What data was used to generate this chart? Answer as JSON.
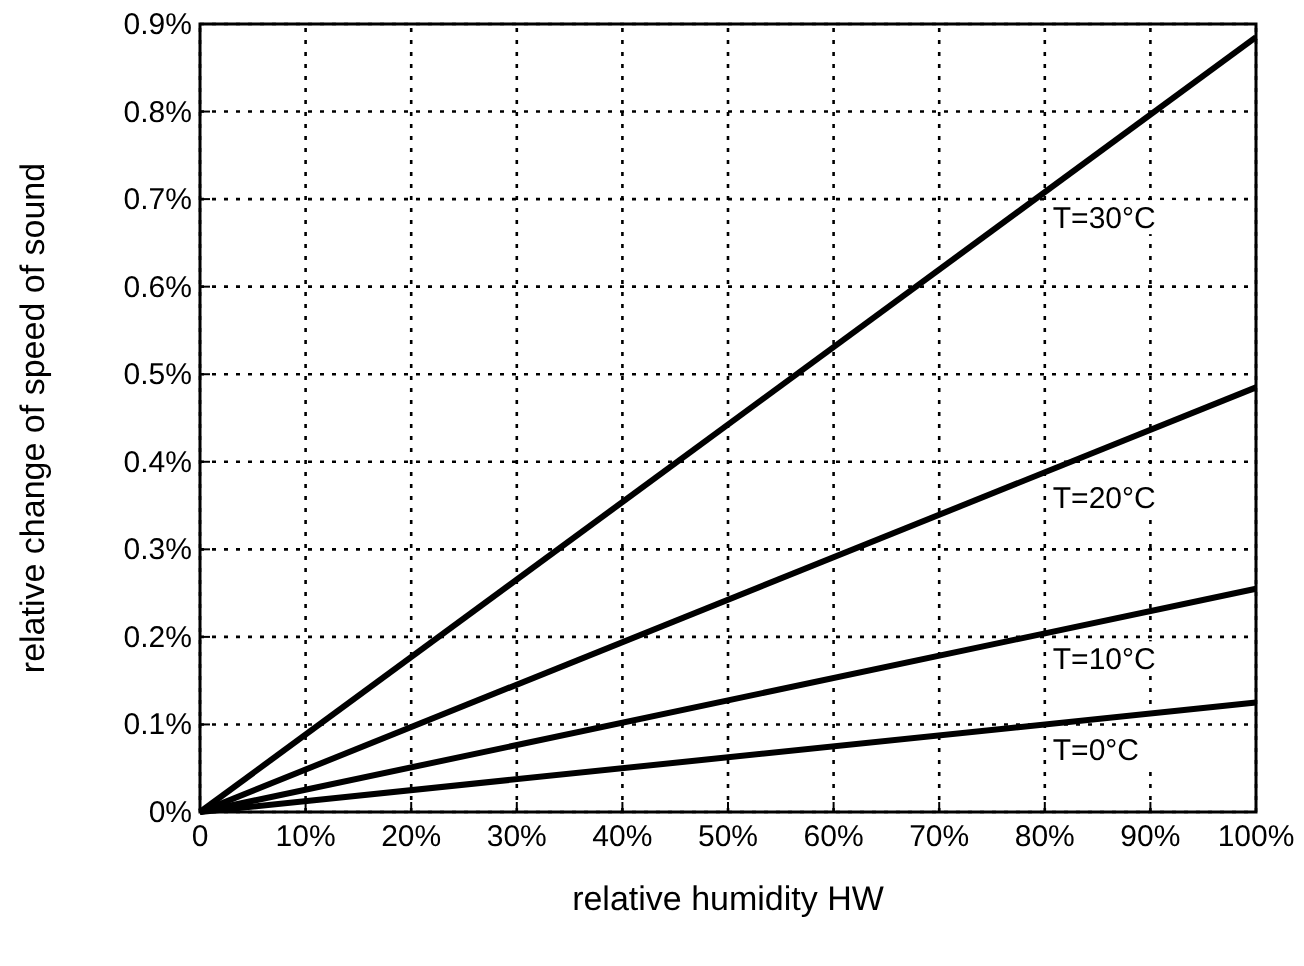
{
  "chart_data": {
    "type": "line",
    "xlabel": "relative humidity HW",
    "ylabel": "relative change of speed of sound",
    "xlim": [
      0,
      100
    ],
    "ylim": [
      0,
      0.9
    ],
    "xticks": [
      {
        "value": 0,
        "label": "0"
      },
      {
        "value": 10,
        "label": "10%"
      },
      {
        "value": 20,
        "label": "20%"
      },
      {
        "value": 30,
        "label": "30%"
      },
      {
        "value": 40,
        "label": "40%"
      },
      {
        "value": 50,
        "label": "50%"
      },
      {
        "value": 60,
        "label": "60%"
      },
      {
        "value": 70,
        "label": "70%"
      },
      {
        "value": 80,
        "label": "80%"
      },
      {
        "value": 90,
        "label": "90%"
      },
      {
        "value": 100,
        "label": "100%"
      }
    ],
    "yticks": [
      {
        "value": 0,
        "label": "0%"
      },
      {
        "value": 0.1,
        "label": "0.1%"
      },
      {
        "value": 0.2,
        "label": "0.2%"
      },
      {
        "value": 0.3,
        "label": "0.3%"
      },
      {
        "value": 0.4,
        "label": "0.4%"
      },
      {
        "value": 0.5,
        "label": "0.5%"
      },
      {
        "value": 0.6,
        "label": "0.6%"
      },
      {
        "value": 0.7,
        "label": "0.7%"
      },
      {
        "value": 0.8,
        "label": "0.8%"
      },
      {
        "value": 0.9,
        "label": "0.9%"
      }
    ],
    "grid": true,
    "marker": "none",
    "line_style": "solid",
    "x": [
      0,
      100
    ],
    "series": [
      {
        "name": "T=30°C",
        "color": "#000000",
        "values": [
          0,
          0.885
        ]
      },
      {
        "name": "T=20°C",
        "color": "#000000",
        "values": [
          0,
          0.485
        ]
      },
      {
        "name": "T=10°C",
        "color": "#000000",
        "values": [
          0,
          0.255
        ]
      },
      {
        "name": "T=0°C",
        "color": "#000000",
        "values": [
          0,
          0.125
        ]
      }
    ]
  }
}
